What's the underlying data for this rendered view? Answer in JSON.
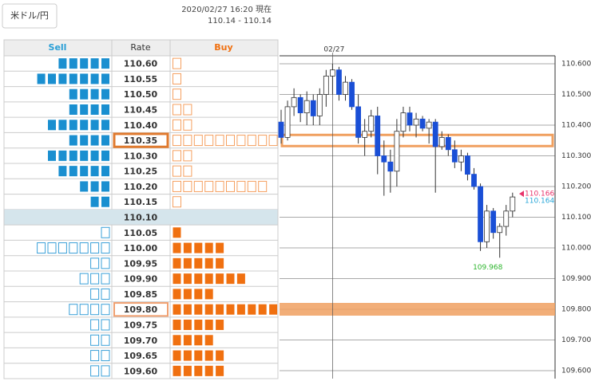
{
  "header": {
    "pair_button": "米ドル/円",
    "timestamp": "2020/02/27 16:20 現在",
    "price_range": "110.14 - 110.14"
  },
  "order_book": {
    "columns": [
      "Sell",
      "Rate",
      "Buy"
    ],
    "rows": [
      {
        "rate": "110.60",
        "sell": 5,
        "buy": 1
      },
      {
        "rate": "110.55",
        "sell": 7,
        "buy": 1
      },
      {
        "rate": "110.50",
        "sell": 4,
        "buy": 1
      },
      {
        "rate": "110.45",
        "sell": 4,
        "buy": 2
      },
      {
        "rate": "110.40",
        "sell": 6,
        "buy": 2
      },
      {
        "rate": "110.35",
        "sell": 4,
        "buy": 10
      },
      {
        "rate": "110.30",
        "sell": 6,
        "buy": 2
      },
      {
        "rate": "110.25",
        "sell": 5,
        "buy": 2
      },
      {
        "rate": "110.20",
        "sell": 3,
        "buy": 9
      },
      {
        "rate": "110.15",
        "sell": 2,
        "buy": 1
      },
      {
        "rate": "110.10",
        "sell": null,
        "buy": null
      },
      {
        "rate": "110.05",
        "sell": 1,
        "buy": 1
      },
      {
        "rate": "110.00",
        "sell": 7,
        "buy": 5
      },
      {
        "rate": "109.95",
        "sell": 2,
        "buy": 5
      },
      {
        "rate": "109.90",
        "sell": 3,
        "buy": 7
      },
      {
        "rate": "109.85",
        "sell": 2,
        "buy": 4
      },
      {
        "rate": "109.80",
        "sell": 4,
        "buy": 10
      },
      {
        "rate": "109.75",
        "sell": 2,
        "buy": 5
      },
      {
        "rate": "109.70",
        "sell": 2,
        "buy": 4
      },
      {
        "rate": "109.65",
        "sell": 2,
        "buy": 5
      },
      {
        "rate": "109.60",
        "sell": 2,
        "buy": 5
      }
    ]
  },
  "chart_data": {
    "type": "candlestick",
    "categories": [
      null,
      null,
      null,
      null,
      null,
      null,
      null,
      null,
      "02/27",
      null,
      null,
      null,
      null,
      null,
      null,
      null,
      null,
      null,
      null,
      null,
      null,
      null,
      null,
      null,
      null,
      null,
      null,
      null,
      null,
      null,
      null,
      null,
      null,
      null,
      null,
      null,
      null
    ],
    "open": [
      110.41,
      110.36,
      110.46,
      110.49,
      110.44,
      110.48,
      110.43,
      110.5,
      110.56,
      110.58,
      110.5,
      110.54,
      110.46,
      110.36,
      110.38,
      110.43,
      110.3,
      110.28,
      110.25,
      110.38,
      110.44,
      110.4,
      110.42,
      110.39,
      110.41,
      110.33,
      110.36,
      110.32,
      110.28,
      110.3,
      110.24,
      110.2,
      110.02,
      110.12,
      110.05,
      110.07,
      110.12
    ],
    "high": [
      110.45,
      110.48,
      110.52,
      110.5,
      110.51,
      110.5,
      110.52,
      110.58,
      110.6,
      110.59,
      110.56,
      110.55,
      110.5,
      110.42,
      110.45,
      110.46,
      110.35,
      110.32,
      110.42,
      110.46,
      110.46,
      110.44,
      110.43,
      110.42,
      110.42,
      110.38,
      110.37,
      110.35,
      110.32,
      110.31,
      110.26,
      110.21,
      110.14,
      110.13,
      110.08,
      110.14,
      110.18
    ],
    "low": [
      110.34,
      110.35,
      110.43,
      110.41,
      110.4,
      110.4,
      110.4,
      110.46,
      110.5,
      110.48,
      110.48,
      110.45,
      110.34,
      110.3,
      110.36,
      110.24,
      110.17,
      110.18,
      110.2,
      110.36,
      110.38,
      110.36,
      110.38,
      110.34,
      110.18,
      110.32,
      110.3,
      110.26,
      110.25,
      110.22,
      110.19,
      109.99,
      110.0,
      110.03,
      109.968,
      110.04,
      110.1
    ],
    "close": [
      110.36,
      110.46,
      110.49,
      110.44,
      110.48,
      110.43,
      110.5,
      110.56,
      110.58,
      110.5,
      110.54,
      110.46,
      110.36,
      110.38,
      110.43,
      110.3,
      110.28,
      110.25,
      110.38,
      110.44,
      110.4,
      110.42,
      110.39,
      110.41,
      110.33,
      110.36,
      110.32,
      110.28,
      110.3,
      110.24,
      110.2,
      110.02,
      110.12,
      110.05,
      110.07,
      110.12,
      110.166
    ],
    "up_color": "#ffffff",
    "down_color": "#1a4fd6",
    "ylim": [
      109.574,
      110.626
    ],
    "yticks": [
      {
        "value": 110.6,
        "label": "110.600"
      },
      {
        "value": 110.5,
        "label": "110.500"
      },
      {
        "value": 110.4,
        "label": "110.400"
      },
      {
        "value": 110.3,
        "label": "110.300"
      },
      {
        "value": 110.2,
        "label": "110.200"
      },
      {
        "value": 110.1,
        "label": "110.100"
      },
      {
        "value": 110.0,
        "label": "110.000"
      },
      {
        "value": 109.9,
        "label": "109.900"
      },
      {
        "value": 109.8,
        "label": "109.800"
      },
      {
        "value": 109.7,
        "label": "109.700"
      },
      {
        "value": 109.6,
        "label": "109.600"
      }
    ],
    "grid": true,
    "bands": [
      110.35,
      109.8
    ],
    "low_label": 109.968,
    "price_markers": [
      {
        "value": 110.166,
        "color": "#e8336b"
      },
      {
        "value": 110.164,
        "color": "#2aa7d8"
      }
    ]
  }
}
